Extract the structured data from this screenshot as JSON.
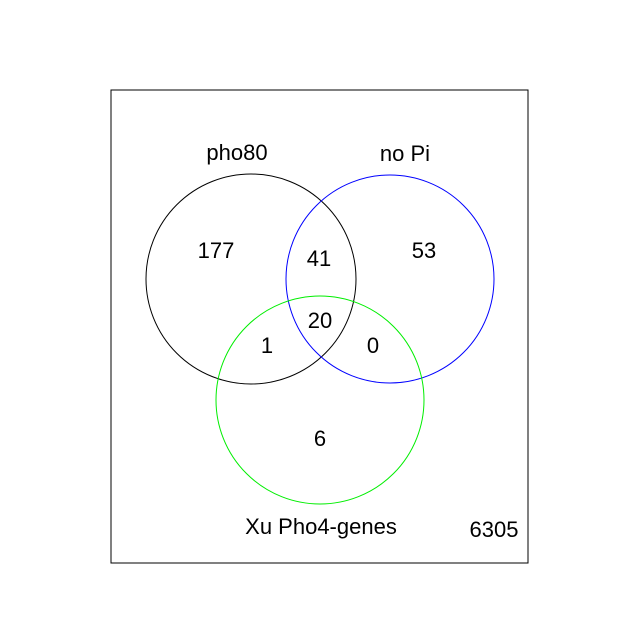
{
  "venn": {
    "sets": [
      {
        "label": "pho80",
        "color": "#000000"
      },
      {
        "label": "no Pi",
        "color": "#0000ff"
      },
      {
        "label": "Xu Pho4-genes",
        "color": "#00ee00"
      }
    ],
    "counts": {
      "pho80_only": "177",
      "nopi_only": "53",
      "xu_only": "6",
      "pho80_nopi": "41",
      "pho80_xu": "1",
      "nopi_xu": "0",
      "all_three": "20",
      "outside": "6305"
    }
  }
}
